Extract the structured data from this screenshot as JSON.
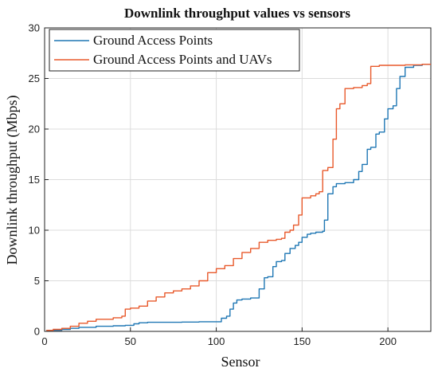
{
  "chart_data": {
    "type": "line",
    "title": "Downlink throughput values vs sensors",
    "xlabel": "Sensor",
    "ylabel": "Downlink throughput (Mbps)",
    "xlim": [
      0,
      225
    ],
    "ylim": [
      0,
      30
    ],
    "xticks": [
      0,
      50,
      100,
      150,
      200
    ],
    "yticks": [
      0,
      5,
      10,
      15,
      20,
      25,
      30
    ],
    "grid": true,
    "legend_position": "top-left",
    "series": [
      {
        "name": "Ground Access Points",
        "color": "#1f77b4",
        "x": [
          1,
          10,
          15,
          20,
          30,
          40,
          47,
          52,
          55,
          60,
          70,
          80,
          90,
          100,
          103,
          106,
          108,
          110,
          112,
          115,
          120,
          125,
          128,
          130,
          133,
          135,
          138,
          140,
          143,
          146,
          148,
          150,
          153,
          155,
          158,
          162,
          163,
          165,
          168,
          170,
          175,
          180,
          183,
          185,
          188,
          190,
          193,
          195,
          198,
          200,
          203,
          205,
          207,
          210,
          215,
          220,
          225
        ],
        "y": [
          0.1,
          0.2,
          0.3,
          0.4,
          0.5,
          0.55,
          0.6,
          0.75,
          0.85,
          0.9,
          0.9,
          0.92,
          0.95,
          0.95,
          1.3,
          1.5,
          2.2,
          2.8,
          3.1,
          3.2,
          3.3,
          4.2,
          5.3,
          5.4,
          6.4,
          6.9,
          7.0,
          7.7,
          8.2,
          8.5,
          8.8,
          9.3,
          9.6,
          9.7,
          9.8,
          9.9,
          11.0,
          13.6,
          14.3,
          14.6,
          14.7,
          15.0,
          15.8,
          16.5,
          18.0,
          18.2,
          19.5,
          19.7,
          21.0,
          22.0,
          22.3,
          24.0,
          25.2,
          26.1,
          26.3,
          26.4,
          26.4
        ]
      },
      {
        "name": "Ground Access Points and UAVs",
        "color": "#e8592b",
        "x": [
          1,
          5,
          10,
          15,
          20,
          25,
          30,
          40,
          45,
          47,
          50,
          55,
          60,
          65,
          70,
          75,
          80,
          85,
          90,
          95,
          100,
          105,
          110,
          115,
          120,
          125,
          130,
          135,
          138,
          140,
          143,
          145,
          148,
          150,
          155,
          158,
          160,
          162,
          165,
          168,
          170,
          172,
          175,
          180,
          185,
          188,
          190,
          195,
          200,
          210,
          220,
          225
        ],
        "y": [
          0.1,
          0.2,
          0.3,
          0.5,
          0.8,
          1.0,
          1.2,
          1.35,
          1.5,
          2.2,
          2.3,
          2.5,
          3.0,
          3.4,
          3.8,
          4.0,
          4.2,
          4.5,
          5.0,
          5.8,
          6.2,
          6.5,
          7.2,
          7.8,
          8.2,
          8.8,
          9.0,
          9.1,
          9.2,
          9.8,
          10.0,
          10.5,
          11.5,
          13.2,
          13.4,
          13.6,
          13.8,
          15.9,
          16.2,
          19.0,
          22.0,
          22.5,
          24.0,
          24.1,
          24.3,
          24.5,
          26.2,
          26.3,
          26.3,
          26.35,
          26.4,
          26.4
        ]
      }
    ]
  }
}
